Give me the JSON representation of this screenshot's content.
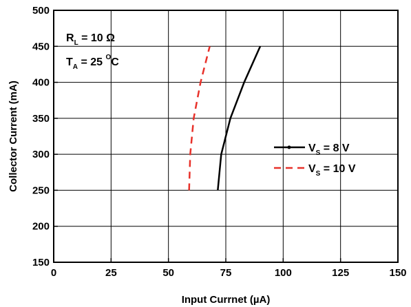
{
  "chart_data": {
    "type": "line",
    "xlabel": "Input Currnet (µA)",
    "ylabel": "Collector Current (mA)",
    "xlim": [
      0,
      150
    ],
    "ylim": [
      150,
      500
    ],
    "xticks": [
      0,
      25,
      50,
      75,
      100,
      125,
      150
    ],
    "yticks": [
      150,
      200,
      250,
      300,
      350,
      400,
      450,
      500
    ],
    "grid": true,
    "legend_position": "right",
    "annotations": {
      "rl": {
        "main": "R",
        "sub": "L",
        "rest": " = 10 Ω"
      },
      "ta": {
        "main": "T",
        "sub": "A",
        "rest": " = 25 ",
        "sup": "O",
        "unit": "C"
      }
    },
    "series": [
      {
        "name": "V_S = 8 V",
        "legend": {
          "main": "V",
          "sub": "S",
          "rest": " = 8 V"
        },
        "color": "#000000",
        "style": "solid",
        "x": [
          71.5,
          73,
          77,
          83,
          90
        ],
        "y": [
          250,
          300,
          350,
          400,
          450
        ]
      },
      {
        "name": "V_S = 10 V",
        "legend": {
          "main": "V",
          "sub": "S",
          "rest": " = 10 V"
        },
        "color": "#e8312a",
        "style": "dashed",
        "x": [
          59,
          59.5,
          61,
          64,
          68
        ],
        "y": [
          250,
          300,
          350,
          400,
          450
        ]
      }
    ]
  }
}
